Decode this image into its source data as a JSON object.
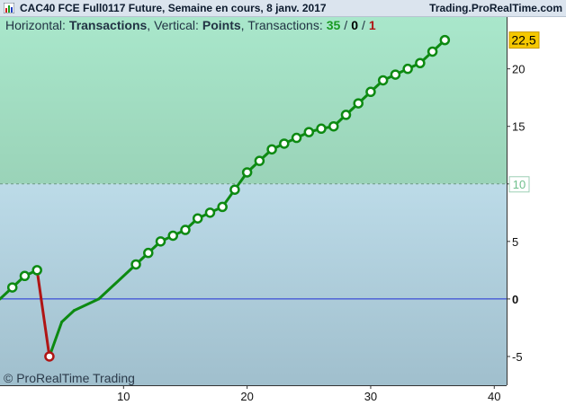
{
  "window": {
    "title": "CAC40 FCE Full0117 Future, Semaine en cours, 8 janv. 2017",
    "site": "Trading.ProRealTime.com"
  },
  "header": {
    "horizontal_label": "Horizontal:",
    "horizontal_value": "Transactions",
    "vertical_label": ", Vertical:",
    "vertical_value": "Points",
    "transactions_label": ", Transactions:",
    "wins": "35",
    "sep1": "/",
    "neutral": "0",
    "sep2": "/",
    "losses": "1"
  },
  "watermark": "© ProRealTime Trading",
  "last_value_label": "22,5",
  "threshold_label": "10",
  "colors": {
    "win": "#0d8a12",
    "loss": "#b01515",
    "zone_top": "#a8e3c8",
    "zone_bottom": "#b6d6e4",
    "zero_line": "#1f2fd6",
    "badge": "#f5c800"
  },
  "chart_data": {
    "type": "line",
    "x_ticks": [
      "10",
      "20",
      "30",
      "40"
    ],
    "y_ticks": [
      "-5",
      "0",
      "5",
      "10",
      "15",
      "20"
    ],
    "xlim": [
      0,
      41
    ],
    "ylim": [
      -7.5,
      24.5
    ],
    "threshold": 10,
    "series": [
      {
        "x": [
          0,
          1,
          2,
          3,
          4,
          5,
          6,
          8,
          11,
          12,
          13,
          14,
          15,
          16,
          17,
          18,
          19,
          20,
          21,
          22,
          23,
          24,
          25,
          26,
          27,
          28,
          29,
          30,
          31,
          32,
          33,
          34,
          35,
          36
        ],
        "y": [
          0,
          1,
          2,
          2.5,
          -5,
          -2,
          -1,
          0,
          3,
          4,
          5,
          5.5,
          6,
          7,
          7.5,
          8,
          9.5,
          11,
          12,
          13,
          13.5,
          14,
          14.5,
          14.8,
          15,
          16,
          17,
          18,
          19,
          19.5,
          20,
          20.5,
          21.5,
          22.5
        ]
      }
    ],
    "markers_x": [
      1,
      2,
      3,
      4,
      11,
      12,
      13,
      14,
      15,
      16,
      17,
      18,
      19,
      20,
      21,
      22,
      23,
      24,
      25,
      26,
      27,
      28,
      29,
      30,
      31,
      32,
      33,
      34,
      35,
      36
    ],
    "loss_x": [
      4
    ],
    "last_value": 22.5
  }
}
